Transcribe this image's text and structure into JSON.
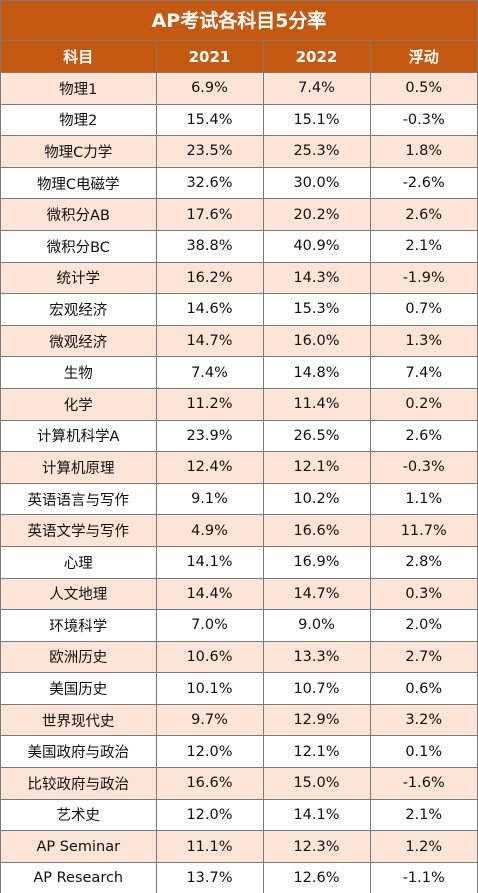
{
  "title": "AP考试各科目5分率",
  "headers": [
    "科目",
    "2021",
    "2022",
    "浮动"
  ],
  "rows": [
    [
      "物理1",
      "6.9%",
      "7.4%",
      "0.5%"
    ],
    [
      "物理2",
      "15.4%",
      "15.1%",
      "-0.3%"
    ],
    [
      "物理C力学",
      "23.5%",
      "25.3%",
      "1.8%"
    ],
    [
      "物理C电磁学",
      "32.6%",
      "30.0%",
      "-2.6%"
    ],
    [
      "微积分AB",
      "17.6%",
      "20.2%",
      "2.6%"
    ],
    [
      "微积分BC",
      "38.8%",
      "40.9%",
      "2.1%"
    ],
    [
      "统计学",
      "16.2%",
      "14.3%",
      "-1.9%"
    ],
    [
      "宏观经济",
      "14.6%",
      "15.3%",
      "0.7%"
    ],
    [
      "微观经济",
      "14.7%",
      "16.0%",
      "1.3%"
    ],
    [
      "生物",
      "7.4%",
      "14.8%",
      "7.4%"
    ],
    [
      "化学",
      "11.2%",
      "11.4%",
      "0.2%"
    ],
    [
      "计算机科学A",
      "23.9%",
      "26.5%",
      "2.6%"
    ],
    [
      "计算机原理",
      "12.4%",
      "12.1%",
      "-0.3%"
    ],
    [
      "英语语言与写作",
      "9.1%",
      "10.2%",
      "1.1%"
    ],
    [
      "英语文学与写作",
      "4.9%",
      "16.6%",
      "11.7%"
    ],
    [
      "心理",
      "14.1%",
      "16.9%",
      "2.8%"
    ],
    [
      "人文地理",
      "14.4%",
      "14.7%",
      "0.3%"
    ],
    [
      "环境科学",
      "7.0%",
      "9.0%",
      "2.0%"
    ],
    [
      "欧洲历史",
      "10.6%",
      "13.3%",
      "2.7%"
    ],
    [
      "美国历史",
      "10.1%",
      "10.7%",
      "0.6%"
    ],
    [
      "世界现代史",
      "9.7%",
      "12.9%",
      "3.2%"
    ],
    [
      "美国政府与政治",
      "12.0%",
      "12.1%",
      "0.1%"
    ],
    [
      "比较政府与政治",
      "16.6%",
      "15.0%",
      "-1.6%"
    ],
    [
      "艺术史",
      "12.0%",
      "14.1%",
      "2.1%"
    ],
    [
      "AP Seminar",
      "11.1%",
      "12.3%",
      "1.2%"
    ],
    [
      "AP Research",
      "13.7%",
      "12.6%",
      "-1.1%"
    ]
  ],
  "colors": {
    "header_bg": "#c65911",
    "header_text": "#ffffff",
    "band_row": "#fce4d6",
    "plain_row": "#ffffff",
    "grid": "#7a7a7a"
  }
}
